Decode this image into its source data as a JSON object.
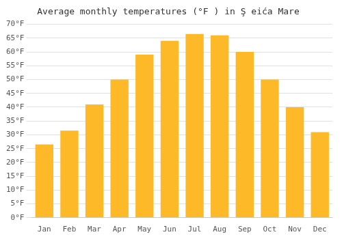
{
  "chart_data": {
    "type": "bar",
    "title": "Average monthly temperatures (°F ) in Ş eića Mare",
    "categories": [
      "Jan",
      "Feb",
      "Mar",
      "Apr",
      "May",
      "Jun",
      "Jul",
      "Aug",
      "Sep",
      "Oct",
      "Nov",
      "Dec"
    ],
    "values": [
      26.5,
      31.5,
      41.0,
      50.0,
      59.0,
      64.0,
      66.5,
      66.0,
      60.0,
      50.0,
      40.0,
      31.0
    ],
    "color": "#FDB927",
    "ylim": [
      0,
      70
    ],
    "yticks": [
      {
        "value": 0,
        "label": "0°F"
      },
      {
        "value": 5,
        "label": "5°F"
      },
      {
        "value": 10,
        "label": "10°F"
      },
      {
        "value": 15,
        "label": "15°F"
      },
      {
        "value": 20,
        "label": "20°F"
      },
      {
        "value": 25,
        "label": "25°F"
      },
      {
        "value": 30,
        "label": "30°F"
      },
      {
        "value": 35,
        "label": "35°F"
      },
      {
        "value": 40,
        "label": "40°F"
      },
      {
        "value": 45,
        "label": "45°F"
      },
      {
        "value": 50,
        "label": "50°F"
      },
      {
        "value": 55,
        "label": "55°F"
      },
      {
        "value": 60,
        "label": "60°F"
      },
      {
        "value": 65,
        "label": "65°F"
      },
      {
        "value": 70,
        "label": "70°F"
      }
    ],
    "grid": true
  }
}
